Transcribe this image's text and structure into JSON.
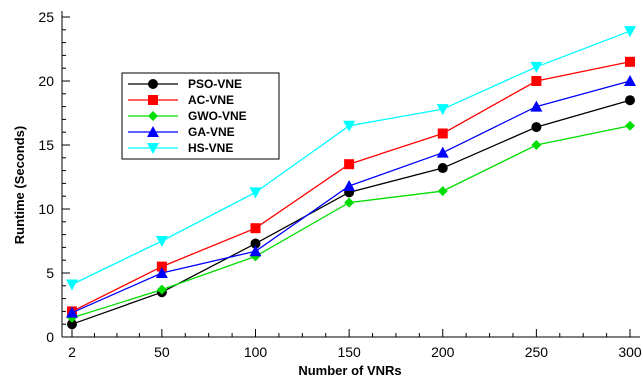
{
  "chart_data": {
    "type": "line",
    "title": "",
    "xlabel": "Number of VNRs",
    "ylabel": "Runtime (Seconds)",
    "x": [
      2,
      50,
      100,
      150,
      200,
      250,
      300
    ],
    "x_tick_labels": [
      "2",
      "50",
      "100",
      "150",
      "200",
      "250",
      "300"
    ],
    "ylim": [
      0,
      25
    ],
    "y_ticks": [
      0,
      5,
      10,
      15,
      20,
      25
    ],
    "y_tick_labels": [
      "0",
      "5",
      "10",
      "15",
      "20",
      "25"
    ],
    "grid": false,
    "legend_position": "upper-left",
    "series": [
      {
        "name": "PSO-VNE",
        "color": "#000000",
        "marker": "circle",
        "values": [
          1.0,
          3.5,
          7.3,
          11.3,
          13.2,
          16.4,
          18.5
        ]
      },
      {
        "name": "AC-VNE",
        "color": "#ff0000",
        "marker": "square",
        "values": [
          2.0,
          5.5,
          8.5,
          13.5,
          15.9,
          20.0,
          21.5
        ]
      },
      {
        "name": "GWO-VNE",
        "color": "#00dd00",
        "marker": "diamond",
        "values": [
          1.5,
          3.7,
          6.3,
          10.5,
          11.4,
          15.0,
          16.5
        ]
      },
      {
        "name": "GA-VNE",
        "color": "#0000ff",
        "marker": "triangle-up",
        "values": [
          1.9,
          5.0,
          6.7,
          11.8,
          14.4,
          18.0,
          20.0
        ]
      },
      {
        "name": "HS-VNE",
        "color": "#00ffff",
        "marker": "triangle-down",
        "values": [
          4.1,
          7.5,
          11.3,
          16.5,
          17.8,
          21.1,
          23.9
        ]
      }
    ]
  }
}
